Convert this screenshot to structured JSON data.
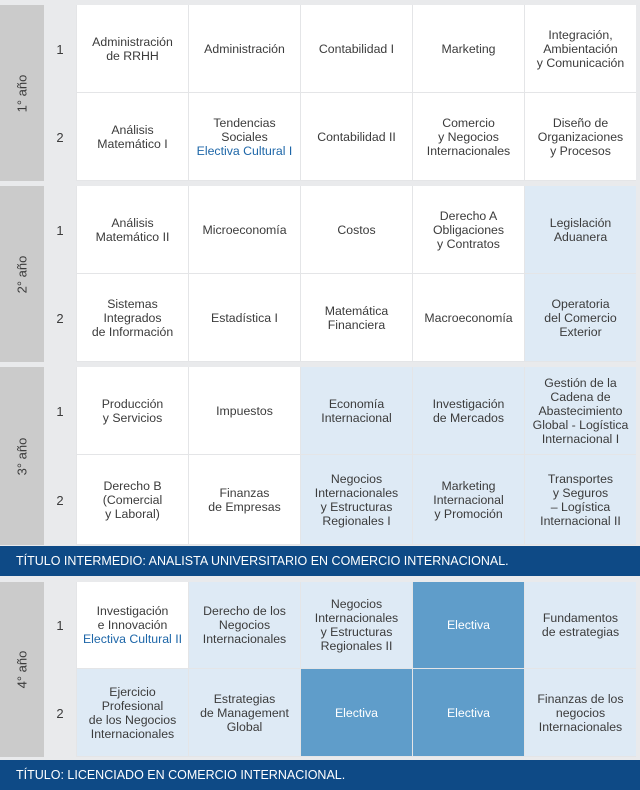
{
  "years": [
    {
      "label": "1° año",
      "semesters": [
        {
          "num": "1",
          "subjects": [
            {
              "lines": [
                "Administración",
                "de RRHH"
              ],
              "style": "white"
            },
            {
              "lines": [
                "Administración"
              ],
              "style": "white"
            },
            {
              "lines": [
                "Contabilidad I"
              ],
              "style": "white"
            },
            {
              "lines": [
                "Marketing"
              ],
              "style": "white"
            },
            {
              "lines": [
                "Integración,",
                "Ambientación",
                "y Comunicación"
              ],
              "style": "white"
            }
          ]
        },
        {
          "num": "2",
          "subjects": [
            {
              "lines": [
                "Análisis",
                "Matemático I"
              ],
              "style": "white"
            },
            {
              "lines": [
                "Tendencias",
                "Sociales"
              ],
              "elective": "Electiva Cultural I",
              "style": "white"
            },
            {
              "lines": [
                "Contabilidad II"
              ],
              "style": "white"
            },
            {
              "lines": [
                "Comercio",
                "y Negocios",
                "Internacionales"
              ],
              "style": "white"
            },
            {
              "lines": [
                "Diseño de",
                "Organizaciones",
                "y Procesos"
              ],
              "style": "white"
            }
          ]
        }
      ]
    },
    {
      "label": "2° año",
      "semesters": [
        {
          "num": "1",
          "subjects": [
            {
              "lines": [
                "Análisis",
                "Matemático II"
              ],
              "style": "white"
            },
            {
              "lines": [
                "Microeconomía"
              ],
              "style": "white"
            },
            {
              "lines": [
                "Costos"
              ],
              "style": "white"
            },
            {
              "lines": [
                "Derecho A",
                "Obligaciones",
                "y Contratos"
              ],
              "style": "white"
            },
            {
              "lines": [
                "Legislación",
                "Aduanera"
              ],
              "style": "light"
            }
          ]
        },
        {
          "num": "2",
          "subjects": [
            {
              "lines": [
                "Sistemas",
                "Integrados",
                "de Información"
              ],
              "style": "white"
            },
            {
              "lines": [
                "Estadística I"
              ],
              "style": "white"
            },
            {
              "lines": [
                "Matemática",
                "Financiera"
              ],
              "style": "white"
            },
            {
              "lines": [
                "Macroeconomía"
              ],
              "style": "white"
            },
            {
              "lines": [
                "Operatoria",
                "del Comercio",
                "Exterior"
              ],
              "style": "light"
            }
          ]
        }
      ]
    },
    {
      "label": "3° año",
      "semesters": [
        {
          "num": "1",
          "subjects": [
            {
              "lines": [
                "Producción",
                "y Servicios"
              ],
              "style": "white"
            },
            {
              "lines": [
                "Impuestos"
              ],
              "style": "white"
            },
            {
              "lines": [
                "Economía",
                "Internacional"
              ],
              "style": "light"
            },
            {
              "lines": [
                "Investigación",
                "de Mercados"
              ],
              "style": "light"
            },
            {
              "lines": [
                "Gestión de la",
                "Cadena de",
                "Abastecimiento",
                "Global - Logística",
                "Internacional I"
              ],
              "style": "light"
            }
          ]
        },
        {
          "num": "2",
          "subjects": [
            {
              "lines": [
                "Derecho B",
                "(Comercial",
                "y Laboral)"
              ],
              "style": "white"
            },
            {
              "lines": [
                "Finanzas",
                "de Empresas"
              ],
              "style": "white"
            },
            {
              "lines": [
                "Negocios",
                "Internacionales",
                "y Estructuras",
                "Regionales I"
              ],
              "style": "light"
            },
            {
              "lines": [
                "Marketing",
                "Internacional",
                "y Promoción"
              ],
              "style": "light"
            },
            {
              "lines": [
                "Transportes",
                "y Seguros",
                "– Logística",
                "Internacional II"
              ],
              "style": "light"
            }
          ]
        }
      ]
    },
    {
      "label": "4° año",
      "semesters": [
        {
          "num": "1",
          "subjects": [
            {
              "lines": [
                "Investigación",
                "e Innovación"
              ],
              "elective": "Electiva Cultural II",
              "style": "white"
            },
            {
              "lines": [
                "Derecho de los",
                "Negocios",
                "Internacionales"
              ],
              "style": "light"
            },
            {
              "lines": [
                "Negocios",
                "Internacionales",
                "y Estructuras",
                "Regionales II"
              ],
              "style": "light"
            },
            {
              "lines": [
                "Electiva"
              ],
              "style": "dark"
            },
            {
              "lines": [
                "Fundamentos",
                "de estrategias"
              ],
              "style": "light"
            }
          ]
        },
        {
          "num": "2",
          "subjects": [
            {
              "lines": [
                "Ejercicio",
                "Profesional",
                "de los Negocios",
                "Internacionales"
              ],
              "style": "light"
            },
            {
              "lines": [
                "Estrategias",
                "de Management",
                "Global"
              ],
              "style": "light"
            },
            {
              "lines": [
                "Electiva"
              ],
              "style": "dark"
            },
            {
              "lines": [
                "Electiva"
              ],
              "style": "dark"
            },
            {
              "lines": [
                "Finanzas de los",
                "negocios",
                "Internacionales"
              ],
              "style": "light"
            }
          ]
        }
      ]
    }
  ],
  "banners": {
    "intermediate": "TÍTULO INTERMEDIO: ANALISTA UNIVERSITARIO EN COMERCIO INTERNACIONAL.",
    "final": "TÍTULO: LICENCIADO EN COMERCIO INTERNACIONAL."
  }
}
